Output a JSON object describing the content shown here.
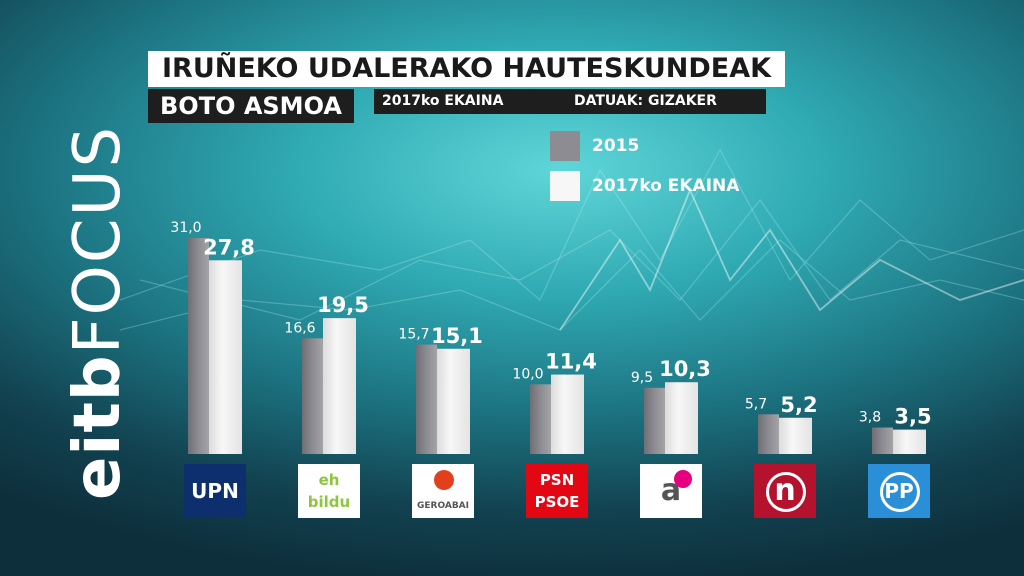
{
  "header": {
    "title": "IRUÑEKO UDALERAKO HAUTESKUNDEAK",
    "subtitle": "BOTO ASMOA",
    "date": "2017ko EKAINA",
    "source": "DATUAK: GIZAKER"
  },
  "brand": {
    "part1": "eitb",
    "part2": "FOCUS"
  },
  "colors": {
    "series_2015": "#8c8c92",
    "series_2017": "#f7f7f7"
  },
  "chart_data": {
    "type": "bar",
    "categories": [
      "UPN",
      "EH Bildu",
      "Geroa Bai",
      "PSN-PSOE",
      "Aranzadi",
      "I-E (n)",
      "PP"
    ],
    "series": [
      {
        "name": "2015",
        "values": [
          31.0,
          16.6,
          15.7,
          10.0,
          9.5,
          5.7,
          3.8
        ],
        "labels": [
          "31,0",
          "16,6",
          "15,7",
          "10,0",
          "9,5",
          "5,7",
          "3,8"
        ]
      },
      {
        "name": "2017ko EKAINA",
        "values": [
          27.8,
          19.5,
          15.1,
          11.4,
          10.3,
          5.2,
          3.5
        ],
        "labels": [
          "27,8",
          "19,5",
          "15,1",
          "11,4",
          "10,3",
          "5,2",
          "3,5"
        ]
      }
    ],
    "xlabel": "",
    "ylabel": "",
    "ylim": [
      0,
      31
    ],
    "grid": false,
    "legend": "top-right"
  },
  "logos": [
    {
      "name": "upn",
      "lines": [
        "UPN"
      ],
      "bg": "#0e2f6e",
      "fg": "#ffffff"
    },
    {
      "name": "eh-bildu",
      "lines": [
        "eh",
        "bildu"
      ],
      "bg": "#ffffff",
      "fg": "#8ec63f"
    },
    {
      "name": "geroa-bai",
      "lines": [
        "GEROABAI"
      ],
      "bg": "#ffffff",
      "fg": "#555555"
    },
    {
      "name": "psn-psoe",
      "lines": [
        "PSN",
        "PSOE"
      ],
      "bg": "#e30613",
      "fg": "#ffffff"
    },
    {
      "name": "aranzadi",
      "lines": [
        "a"
      ],
      "bg": "#ffffff",
      "fg": "#555555"
    },
    {
      "name": "izquierda-ezkerra",
      "lines": [
        "n"
      ],
      "bg": "#b5122e",
      "fg": "#ffffff"
    },
    {
      "name": "pp",
      "lines": [
        "PP"
      ],
      "bg": "#2a8fd6",
      "fg": "#ffffff"
    }
  ]
}
